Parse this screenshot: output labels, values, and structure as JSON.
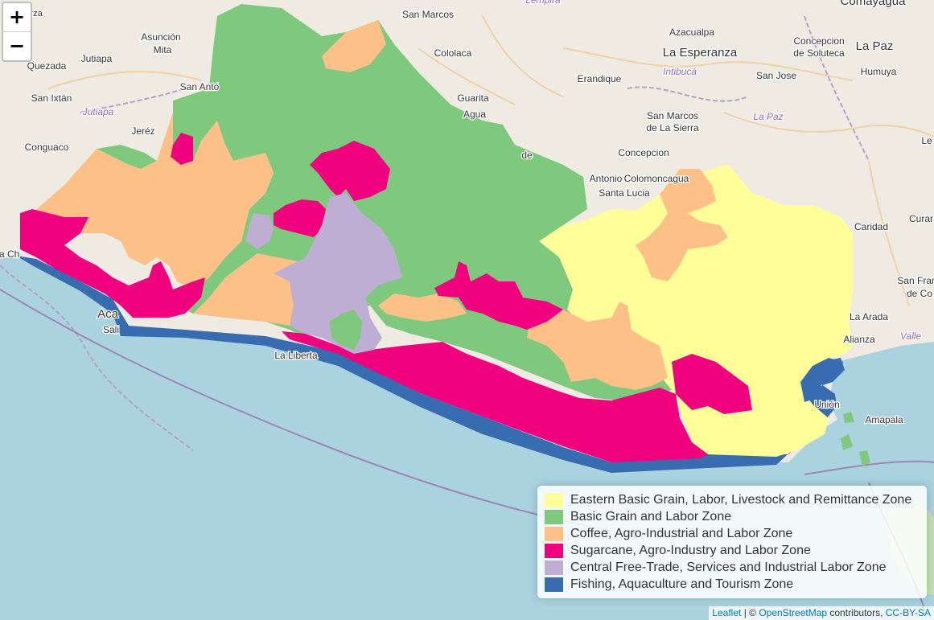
{
  "zoom": {
    "in_label": "+",
    "out_label": "−"
  },
  "places": [
    {
      "name": "arza",
      "cls": "town"
    },
    {
      "name": "San Marcos",
      "cls": "town"
    },
    {
      "name": "Lempira",
      "cls": "dept"
    },
    {
      "name": "Comayagua",
      "cls": "town"
    },
    {
      "name": "Azacualpa",
      "cls": "town"
    },
    {
      "name": "Asunción",
      "cls": "town"
    },
    {
      "name": "Mita",
      "cls": "town"
    },
    {
      "name": "Quezada",
      "cls": "town"
    },
    {
      "name": "Jutiapa",
      "cls": "town"
    },
    {
      "name": "Cololaca",
      "cls": "town"
    },
    {
      "name": "La Esperanza",
      "cls": "city"
    },
    {
      "name": "Concepcion",
      "cls": "town"
    },
    {
      "name": "de Soluteca",
      "cls": "town"
    },
    {
      "name": "La Paz",
      "cls": "city"
    },
    {
      "name": "San Antó",
      "cls": "town"
    },
    {
      "name": "Erandique",
      "cls": "town"
    },
    {
      "name": "Intibucá",
      "cls": "dept"
    },
    {
      "name": "San Jose",
      "cls": "town"
    },
    {
      "name": "Humuya",
      "cls": "town"
    },
    {
      "name": "San Ixtán",
      "cls": "town"
    },
    {
      "name": "Jutiapa",
      "cls": "dept"
    },
    {
      "name": "Guarita",
      "cls": "town"
    },
    {
      "name": "Agua",
      "cls": "town"
    },
    {
      "name": "San Marcos",
      "cls": "town"
    },
    {
      "name": "de La Sierra",
      "cls": "town"
    },
    {
      "name": "La Paz",
      "cls": "dept"
    },
    {
      "name": "Jeréz",
      "cls": "town"
    },
    {
      "name": "Conguaco",
      "cls": "town"
    },
    {
      "name": "Le",
      "cls": "town"
    },
    {
      "name": "Concepcion",
      "cls": "town"
    },
    {
      "name": "de",
      "cls": "town"
    },
    {
      "name": "Antonio",
      "cls": "town"
    },
    {
      "name": "Colomoncagua",
      "cls": "town"
    },
    {
      "name": "Santa Lucia",
      "cls": "town"
    },
    {
      "name": "Curar",
      "cls": "town"
    },
    {
      "name": "Caridad",
      "cls": "town"
    },
    {
      "name": "San Fran",
      "cls": "town"
    },
    {
      "name": "de Co",
      "cls": "town"
    },
    {
      "name": "La Arada",
      "cls": "town"
    },
    {
      "name": "Valle",
      "cls": "dept"
    },
    {
      "name": "Alianza",
      "cls": "town"
    },
    {
      "name": "Amapala",
      "cls": "town"
    },
    {
      "name": "Unión",
      "cls": "town"
    },
    {
      "name": "La Liberta",
      "cls": "town"
    },
    {
      "name": "Aca",
      "cls": "city"
    },
    {
      "name": "Sali",
      "cls": "town"
    },
    {
      "name": "ta Ch",
      "cls": "town"
    }
  ],
  "legend": [
    {
      "label": "Eastern Basic Grain, Labor, Livestock and Remittance Zone",
      "color": "#ffff99"
    },
    {
      "label": "Basic Grain and Labor Zone",
      "color": "#7fc97f"
    },
    {
      "label": "Coffee, Agro-Industrial and Labor Zone",
      "color": "#fdc086"
    },
    {
      "label": "Sugarcane, Agro-Industry and Labor Zone",
      "color": "#f0027f"
    },
    {
      "label": "Central Free-Trade, Services and Industrial Labor Zone",
      "color": "#beaed4"
    },
    {
      "label": "Fishing, Aquaculture and Tourism Zone",
      "color": "#386cb0"
    }
  ],
  "attribution": {
    "leaflet": "Leaflet",
    "sep": " | © ",
    "osm": "OpenStreetMap",
    "contrib": " contributors, ",
    "license": "CC-BY-SA"
  }
}
